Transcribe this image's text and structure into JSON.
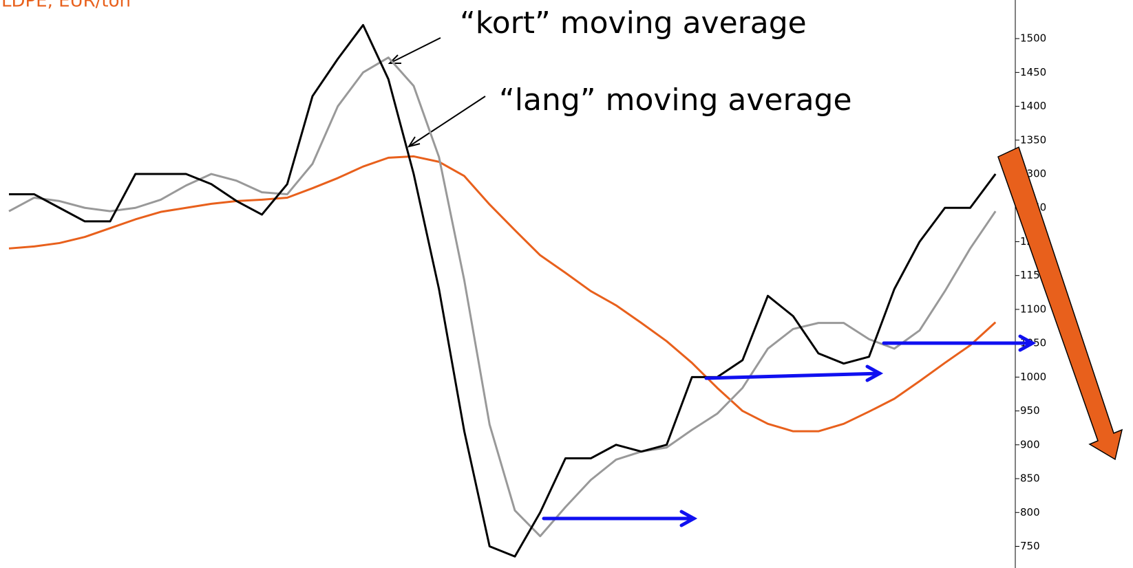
{
  "chart_data": {
    "type": "line",
    "title": "LDPE, EUR/ton",
    "annotations": [
      "“kort” moving average",
      "“lang” moving average"
    ],
    "categories": [
      null,
      null,
      null,
      null,
      null,
      null,
      null,
      null,
      null,
      null,
      null,
      null,
      null,
      null,
      null,
      null,
      null,
      null,
      null,
      null,
      null,
      null,
      null,
      null,
      null,
      null,
      null,
      null,
      null,
      null,
      null,
      null,
      null,
      null,
      null,
      null,
      null,
      null,
      null,
      null
    ],
    "series": [
      {
        "color": "#000000",
        "values": [
          1270,
          1270,
          1250,
          1230,
          1230,
          1300,
          1300,
          1300,
          1285,
          1260,
          1240,
          1285,
          1415,
          1470,
          1520,
          1440,
          1300,
          1130,
          920,
          750,
          735,
          800,
          880,
          880,
          900,
          890,
          900,
          1000,
          1000,
          1025,
          1120,
          1090,
          1035,
          1020,
          1030,
          1130,
          1200,
          1250,
          1250,
          1300
        ]
      },
      {
        "color": "#999999",
        "values": [
          1245,
          1265,
          1260,
          1250,
          1245,
          1250,
          1262,
          1283,
          1300,
          1290,
          1273,
          1270,
          1315,
          1400,
          1450,
          1472,
          1430,
          1325,
          1143,
          930,
          803,
          765,
          808,
          848,
          878,
          890,
          896,
          922,
          946,
          984,
          1042,
          1071,
          1080,
          1080,
          1056,
          1042,
          1069,
          1127,
          1190,
          1245
        ]
      },
      {
        "color": "#e8601c",
        "values": [
          1190,
          1193,
          1198,
          1207,
          1220,
          1233,
          1244,
          1250,
          1256,
          1260,
          1262,
          1265,
          1279,
          1294,
          1311,
          1324,
          1326,
          1318,
          1297,
          1255,
          1217,
          1180,
          1154,
          1127,
          1106,
          1080,
          1053,
          1021,
          984,
          950,
          931,
          920,
          920,
          931,
          949,
          968,
          994,
          1021,
          1047,
          1081
        ]
      }
    ],
    "ylim": [
      718,
      1557
    ],
    "yticks": [
      750,
      800,
      850,
      900,
      950,
      1000,
      1050,
      1100,
      1150,
      1200,
      1250,
      1300,
      1350,
      1400,
      1450,
      1500
    ],
    "y_axis_side": "right"
  }
}
